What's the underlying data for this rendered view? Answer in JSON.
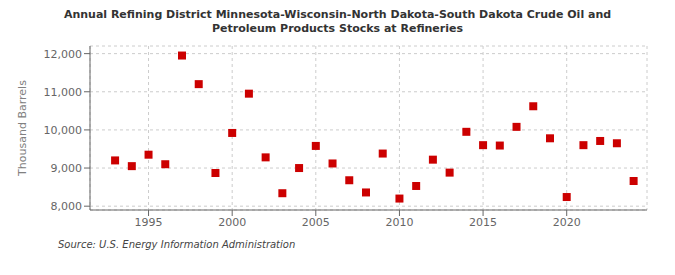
{
  "chart_data": {
    "type": "scatter",
    "title": "Annual Refining District Minnesota-Wisconsin-North Dakota-South Dakota Crude Oil and\nPetroleum Products Stocks at Refineries",
    "ylabel": "Thousand Barrels",
    "annotations": [
      "Source: U.S. Energy Information Administration"
    ],
    "x": [
      1993,
      1994,
      1995,
      1996,
      1997,
      1998,
      1999,
      2000,
      2001,
      2002,
      2003,
      2004,
      2005,
      2006,
      2007,
      2008,
      2009,
      2010,
      2011,
      2012,
      2013,
      2014,
      2015,
      2016,
      2017,
      2018,
      2019,
      2020,
      2021,
      2022,
      2023,
      2024
    ],
    "values": [
      9200,
      9050,
      9350,
      9100,
      11950,
      11200,
      8870,
      9920,
      10950,
      9280,
      8340,
      9000,
      9580,
      9120,
      8680,
      8360,
      9380,
      8200,
      8530,
      9220,
      8880,
      9950,
      9600,
      9590,
      10080,
      10620,
      9780,
      8240,
      9600,
      9710,
      9650,
      8660
    ],
    "color": "#cc0000",
    "marker": "square",
    "xlim": [
      1991.5,
      2024.8
    ],
    "ylim": [
      7900,
      12200
    ],
    "xticks": [
      1995,
      2000,
      2005,
      2010,
      2015,
      2020
    ],
    "yticks": [
      {
        "value": 8000,
        "label": "8,000"
      },
      {
        "value": 9000,
        "label": "9,000"
      },
      {
        "value": 10000,
        "label": "10,000"
      },
      {
        "value": 11000,
        "label": "11,000"
      },
      {
        "value": 12000,
        "label": "12,000"
      }
    ],
    "grid": true
  }
}
